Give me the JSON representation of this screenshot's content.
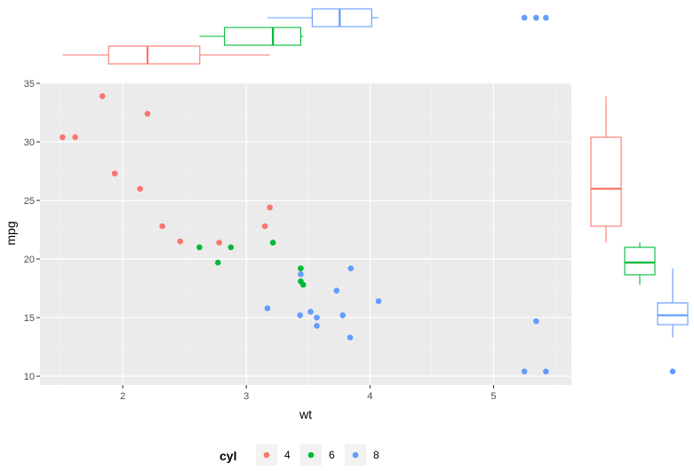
{
  "chart_data": {
    "type": "scatter",
    "xlabel": "wt",
    "ylabel": "mpg",
    "xlim": [
      1.33,
      5.63
    ],
    "ylim": [
      9.25,
      35.07
    ],
    "x_ticks": [
      2,
      3,
      4,
      5
    ],
    "y_ticks": [
      10,
      15,
      20,
      25,
      30,
      35
    ],
    "grid": true,
    "legend": {
      "title": "cyl",
      "position": "bottom",
      "entries": [
        "4",
        "6",
        "8"
      ]
    },
    "colors": {
      "4": "#F8766D",
      "6": "#00BA38",
      "8": "#619CFF"
    },
    "series": [
      {
        "name": "4",
        "points": [
          [
            2.32,
            22.8
          ],
          [
            3.19,
            24.4
          ],
          [
            3.15,
            22.8
          ],
          [
            2.2,
            32.4
          ],
          [
            1.615,
            30.4
          ],
          [
            1.835,
            33.9
          ],
          [
            2.465,
            21.5
          ],
          [
            1.935,
            27.3
          ],
          [
            2.14,
            26.0
          ],
          [
            1.513,
            30.4
          ],
          [
            2.78,
            21.4
          ]
        ]
      },
      {
        "name": "6",
        "points": [
          [
            2.62,
            21.0
          ],
          [
            2.875,
            21.0
          ],
          [
            3.215,
            21.4
          ],
          [
            3.44,
            18.1
          ],
          [
            3.44,
            19.2
          ],
          [
            3.46,
            17.8
          ],
          [
            2.77,
            19.7
          ]
        ]
      },
      {
        "name": "8",
        "points": [
          [
            3.44,
            18.7
          ],
          [
            3.57,
            14.3
          ],
          [
            4.07,
            16.4
          ],
          [
            3.73,
            17.3
          ],
          [
            3.78,
            15.2
          ],
          [
            5.25,
            10.4
          ],
          [
            5.424,
            10.4
          ],
          [
            5.345,
            14.7
          ],
          [
            3.52,
            15.5
          ],
          [
            3.435,
            15.2
          ],
          [
            3.84,
            13.3
          ],
          [
            3.845,
            19.2
          ],
          [
            3.17,
            15.8
          ],
          [
            3.57,
            15.0
          ]
        ]
      }
    ],
    "marginal_boxplots": {
      "wt": [
        {
          "group": "4",
          "whisker_low": 1.513,
          "q1": 1.885,
          "median": 2.2,
          "q3": 2.623,
          "whisker_high": 3.19,
          "outliers": []
        },
        {
          "group": "6",
          "whisker_low": 2.62,
          "q1": 2.823,
          "median": 3.215,
          "q3": 3.44,
          "whisker_high": 3.46,
          "outliers": []
        },
        {
          "group": "8",
          "whisker_low": 3.17,
          "q1": 3.533,
          "median": 3.755,
          "q3": 4.014,
          "whisker_high": 4.07,
          "outliers": [
            5.25,
            5.345,
            5.424
          ]
        }
      ],
      "mpg": [
        {
          "group": "4",
          "whisker_low": 21.4,
          "q1": 22.8,
          "median": 26.0,
          "q3": 30.4,
          "whisker_high": 33.9,
          "outliers": []
        },
        {
          "group": "6",
          "whisker_low": 17.8,
          "q1": 18.65,
          "median": 19.7,
          "q3": 21.0,
          "whisker_high": 21.4,
          "outliers": []
        },
        {
          "group": "8",
          "whisker_low": 13.3,
          "q1": 14.4,
          "median": 15.2,
          "q3": 16.25,
          "whisker_high": 19.2,
          "outliers": [
            10.4
          ]
        }
      ]
    }
  }
}
